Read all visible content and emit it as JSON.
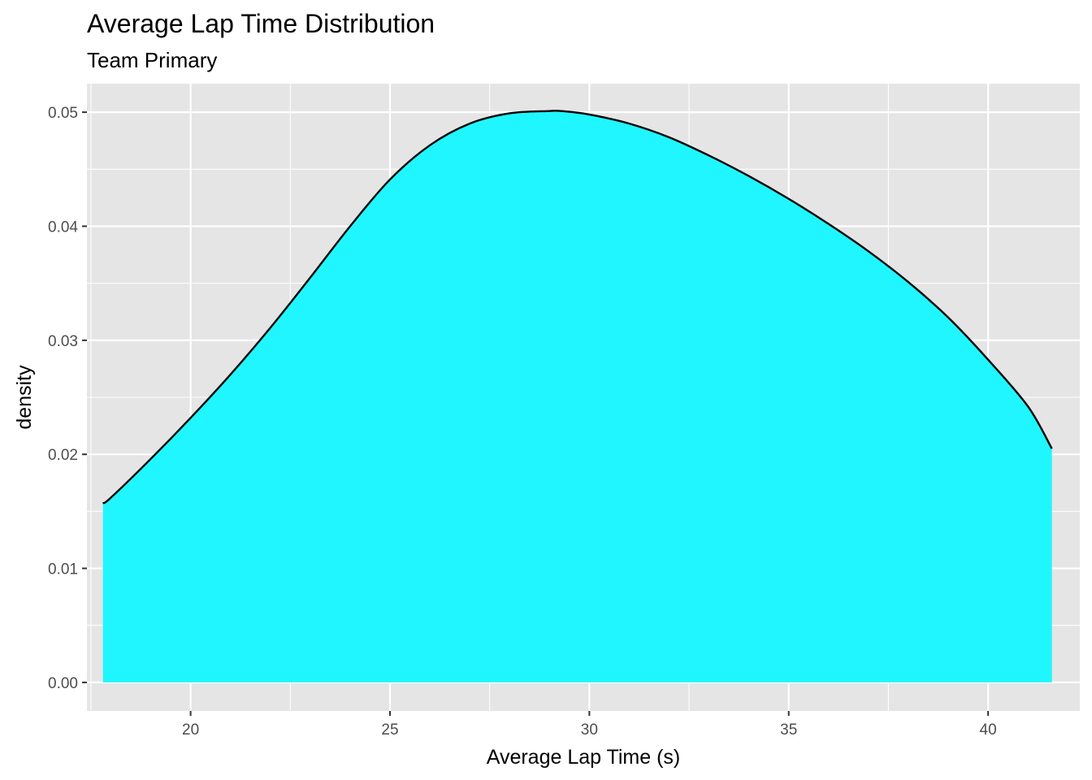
{
  "chart_data": {
    "type": "area",
    "title": "Average Lap Time Distribution",
    "subtitle": "Team Primary",
    "xlabel": "Average Lap Time (s)",
    "ylabel": "density",
    "xlim": [
      17.4,
      42.3
    ],
    "ylim": [
      -0.0025,
      0.0525
    ],
    "x_ticks": [
      20,
      25,
      30,
      35,
      40
    ],
    "x_tick_labels": [
      "20",
      "25",
      "30",
      "35",
      "40"
    ],
    "y_ticks": [
      0.0,
      0.01,
      0.02,
      0.03,
      0.04,
      0.05
    ],
    "y_tick_labels": [
      "0.00",
      "0.01",
      "0.02",
      "0.03",
      "0.04",
      "0.05"
    ],
    "grid": true,
    "legend": "none",
    "fill_color": "#20f6ff",
    "line_color": "#000000",
    "panel_color": "#e5e5e5",
    "series": [
      {
        "x": [
          17.8,
          18.0,
          19.0,
          20.0,
          21.0,
          22.0,
          23.0,
          24.0,
          25.0,
          26.0,
          27.0,
          28.0,
          29.0,
          29.3,
          30.0,
          31.0,
          32.0,
          33.0,
          34.0,
          35.0,
          36.0,
          37.0,
          38.0,
          39.0,
          40.0,
          41.0,
          41.6
        ],
        "y": [
          0.0157,
          0.0162,
          0.0196,
          0.0232,
          0.027,
          0.0311,
          0.0355,
          0.04,
          0.0441,
          0.0471,
          0.049,
          0.0499,
          0.0501,
          0.0501,
          0.0498,
          0.049,
          0.0478,
          0.0462,
          0.0444,
          0.0424,
          0.0402,
          0.0378,
          0.0351,
          0.032,
          0.0283,
          0.0242,
          0.0205
        ]
      }
    ]
  }
}
